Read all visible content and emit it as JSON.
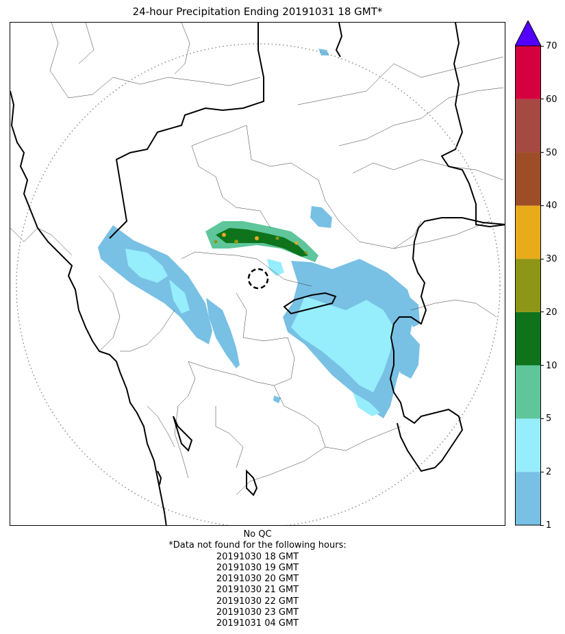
{
  "title": "24-hour Precipitation Ending 20191031 18 GMT*",
  "colorbar": {
    "levels": [
      1,
      2,
      5,
      10,
      20,
      30,
      40,
      50,
      60,
      70
    ],
    "labels": [
      "1",
      "2",
      "5",
      "10",
      "20",
      "30",
      "40",
      "50",
      "60",
      "70"
    ],
    "colors": [
      "#78c0e4",
      "#96edfb",
      "#5ec69a",
      "#0e731b",
      "#8d9617",
      "#e8ac1b",
      "#9d4e27",
      "#a54943",
      "#d5003f"
    ],
    "over_color": "#5200ff",
    "extend": "max"
  },
  "map": {
    "range_ring": "dotted",
    "radar_site_marker": "dashed-circle",
    "precip_colors": {
      "light": "#78c0e4",
      "moderate": "#96edfb",
      "teal": "#5ec69a",
      "green": "#0e731b",
      "olive": "#8d9617",
      "orange": "#e8ac1b"
    }
  },
  "footer": {
    "qc": "No QC",
    "note": "*Data not found for the following hours:",
    "missing_hours": [
      "20191030 18 GMT",
      "20191030 19 GMT",
      "20191030 20 GMT",
      "20191030 21 GMT",
      "20191030 22 GMT",
      "20191030 23 GMT",
      "20191031 04 GMT"
    ]
  }
}
